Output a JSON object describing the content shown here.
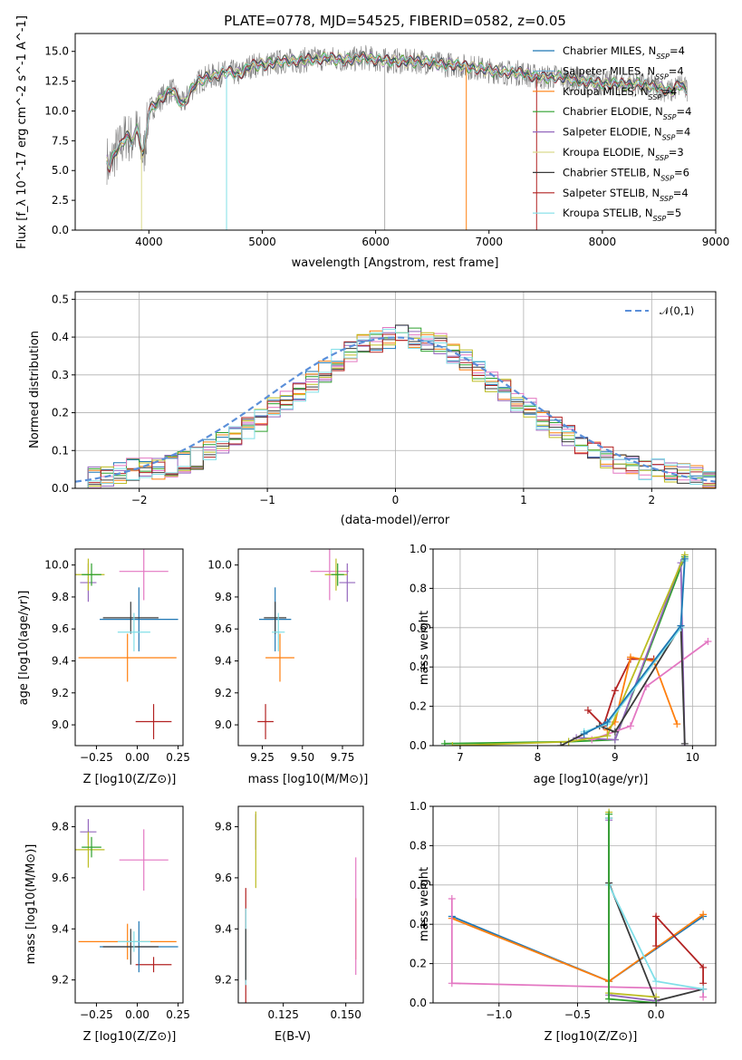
{
  "chart_data": [
    {
      "id": "spectrum",
      "type": "line",
      "title": "PLATE=0778, MJD=54525, FIBERID=0582, z=0.05",
      "xlabel": "wavelength [Angstrom, rest frame]",
      "ylabel": "Flux [f_λ 10^-17 erg cm^-2 s^-1 A^-1]",
      "xlim": [
        3350,
        9000
      ],
      "ylim": [
        0,
        16.5
      ],
      "xticks": [
        4000,
        5000,
        6000,
        7000,
        8000,
        9000
      ],
      "yticks": [
        0.0,
        2.5,
        5.0,
        7.5,
        10.0,
        12.5,
        15.0
      ],
      "grid": false,
      "legend_position": "right",
      "observed_flux": {
        "x": [
          3630,
          3650,
          3700,
          3750,
          3800,
          3850,
          3900,
          3950,
          4000,
          4100,
          4200,
          4300,
          4400,
          4500,
          4600,
          4700,
          4800,
          4900,
          5000,
          5100,
          5200,
          5300,
          5400,
          5500,
          5600,
          5700,
          5800,
          5900,
          6000,
          6100,
          6200,
          6300,
          6400,
          6500,
          6600,
          6700,
          6800,
          6900,
          7000,
          7100,
          7200,
          7300,
          7400,
          7500,
          7600,
          7700,
          7800,
          7900,
          8000,
          8100,
          8200,
          8300,
          8400,
          8500,
          8600,
          8700,
          8750
        ],
        "y": [
          6.0,
          5.2,
          6.5,
          7.0,
          8.0,
          7.5,
          8.5,
          6.0,
          10.0,
          11.0,
          11.8,
          10.5,
          12.2,
          12.8,
          13.0,
          13.3,
          13.1,
          13.8,
          13.9,
          14.0,
          14.2,
          14.2,
          14.3,
          14.4,
          14.4,
          14.3,
          14.3,
          14.5,
          14.3,
          14.2,
          14.2,
          14.1,
          14.2,
          14.0,
          13.9,
          13.9,
          13.7,
          13.6,
          13.4,
          13.3,
          13.2,
          13.2,
          12.9,
          12.8,
          12.9,
          12.7,
          12.5,
          12.4,
          12.3,
          12.3,
          12.2,
          12.3,
          12.1,
          12.0,
          11.6,
          12.3,
          11.5
        ]
      },
      "series": [
        {
          "name": "Chabrier MILES, N_SSP=4",
          "color": "#1f77b4"
        },
        {
          "name": "Salpeter MILES, N_SSP=4",
          "color": "#7fb3d5"
        },
        {
          "name": "Kroupa MILES, N_SSP=4",
          "color": "#ff7f0e"
        },
        {
          "name": "Chabrier ELODIE, N_SSP=4",
          "color": "#2ca02c"
        },
        {
          "name": "Salpeter ELODIE, N_SSP=4",
          "color": "#9467bd"
        },
        {
          "name": "Kroupa ELODIE, N_SSP=3",
          "color": "#dbdb8d"
        },
        {
          "name": "Chabrier STELIB, N_SSP=6",
          "color": "#3a3a3a"
        },
        {
          "name": "Salpeter STELIB, N_SSP=4",
          "color": "#b22222"
        },
        {
          "name": "Kroupa STELIB, N_SSP=5",
          "color": "#80dfe8"
        }
      ]
    },
    {
      "id": "residuals",
      "type": "line",
      "xlabel": "(data-model)/error",
      "ylabel": "Normed distribution",
      "xlim": [
        -2.5,
        2.5
      ],
      "ylim": [
        0,
        0.52
      ],
      "xticks": [
        -2,
        -1,
        0,
        1,
        2
      ],
      "yticks": [
        0.0,
        0.1,
        0.2,
        0.3,
        0.4,
        0.5
      ],
      "grid": true,
      "legend_position": "top-right",
      "reference_curve": "𝒩(0,1)",
      "histogram_bins": [
        -2.5,
        -2.4,
        -2.3,
        -2.2,
        -2.1,
        -2.0,
        -1.9,
        -1.8,
        -1.7,
        -1.6,
        -1.5,
        -1.4,
        -1.3,
        -1.2,
        -1.1,
        -1.0,
        -0.9,
        -0.8,
        -0.7,
        -0.6,
        -0.5,
        -0.4,
        -0.3,
        -0.2,
        -0.1,
        0.0,
        0.1,
        0.2,
        0.3,
        0.4,
        0.5,
        0.6,
        0.7,
        0.8,
        0.9,
        1.0,
        1.1,
        1.2,
        1.3,
        1.4,
        1.5,
        1.6,
        1.7,
        1.8,
        1.9,
        2.0,
        2.1,
        2.2,
        2.3,
        2.4,
        2.5
      ],
      "histogram_density": [
        0.02,
        0.03,
        0.03,
        0.04,
        0.05,
        0.05,
        0.05,
        0.06,
        0.07,
        0.08,
        0.1,
        0.12,
        0.14,
        0.16,
        0.18,
        0.21,
        0.23,
        0.26,
        0.28,
        0.31,
        0.34,
        0.36,
        0.38,
        0.39,
        0.4,
        0.41,
        0.4,
        0.39,
        0.38,
        0.36,
        0.34,
        0.31,
        0.28,
        0.26,
        0.23,
        0.21,
        0.18,
        0.16,
        0.14,
        0.12,
        0.1,
        0.08,
        0.07,
        0.06,
        0.05,
        0.05,
        0.04,
        0.04,
        0.03,
        0.02
      ],
      "histogram_colors": [
        "#1f77b4",
        "#ff7f0e",
        "#2ca02c",
        "#9467bd",
        "#e377c2",
        "#bcbd22",
        "#3a3a3a",
        "#b22222",
        "#80dfe8"
      ]
    },
    {
      "id": "age_vs_Z",
      "type": "scatter",
      "xlabel": "Z [log10(Z/Z⊙)]",
      "ylabel": "age [log10(age/yr)]",
      "xlim": [
        -0.38,
        0.28
      ],
      "ylim": [
        8.87,
        10.1
      ],
      "xticks": [
        -0.25,
        0.0,
        0.25
      ],
      "xtick_labels": [
        "−0.25",
        "0.00",
        "0.25"
      ],
      "yticks": [
        9.0,
        9.2,
        9.4,
        9.6,
        9.8,
        10.0
      ],
      "grid": false,
      "points": [
        {
          "x": 0.1,
          "y": 9.02,
          "xerr": 0.11,
          "yerr": 0.11,
          "color": "#b22222"
        },
        {
          "x": -0.06,
          "y": 9.42,
          "xerr": 0.3,
          "yerr": 0.15,
          "color": "#ff7f0e"
        },
        {
          "x": 0.01,
          "y": 9.66,
          "xerr": 0.24,
          "yerr": 0.2,
          "color": "#1f77b4"
        },
        {
          "x": -0.04,
          "y": 9.67,
          "xerr": 0.17,
          "yerr": 0.1,
          "color": "#3a3a3a"
        },
        {
          "x": -0.02,
          "y": 9.58,
          "xerr": 0.1,
          "yerr": 0.12,
          "color": "#80dfe8"
        },
        {
          "x": 0.04,
          "y": 9.96,
          "xerr": 0.15,
          "yerr": 0.18,
          "color": "#e377c2"
        },
        {
          "x": -0.3,
          "y": 9.89,
          "xerr": 0.05,
          "yerr": 0.12,
          "color": "#9467bd"
        },
        {
          "x": -0.3,
          "y": 9.94,
          "xerr": 0.1,
          "yerr": 0.1,
          "color": "#bcbd22"
        },
        {
          "x": -0.28,
          "y": 9.94,
          "xerr": 0.06,
          "yerr": 0.07,
          "color": "#2ca02c"
        }
      ]
    },
    {
      "id": "age_vs_mass",
      "type": "scatter",
      "xlabel": "mass [log10(M/M⊙)]",
      "xlim": [
        9.1,
        9.88
      ],
      "ylim": [
        8.87,
        10.1
      ],
      "xticks": [
        9.25,
        9.5,
        9.75
      ],
      "xtick_labels": [
        "9.25",
        "9.50",
        "9.75"
      ],
      "yticks": [
        9.0,
        9.2,
        9.4,
        9.6,
        9.8,
        10.0
      ],
      "grid": false,
      "points": [
        {
          "x": 9.27,
          "y": 9.02,
          "xerr": 0.05,
          "yerr": 0.11,
          "color": "#b22222"
        },
        {
          "x": 9.36,
          "y": 9.42,
          "xerr": 0.09,
          "yerr": 0.15,
          "color": "#ff7f0e"
        },
        {
          "x": 9.33,
          "y": 9.66,
          "xerr": 0.1,
          "yerr": 0.2,
          "color": "#1f77b4"
        },
        {
          "x": 9.33,
          "y": 9.67,
          "xerr": 0.07,
          "yerr": 0.1,
          "color": "#3a3a3a"
        },
        {
          "x": 9.35,
          "y": 9.58,
          "xerr": 0.04,
          "yerr": 0.12,
          "color": "#80dfe8"
        },
        {
          "x": 9.67,
          "y": 9.96,
          "xerr": 0.12,
          "yerr": 0.18,
          "color": "#e377c2"
        },
        {
          "x": 9.78,
          "y": 9.89,
          "xerr": 0.05,
          "yerr": 0.12,
          "color": "#9467bd"
        },
        {
          "x": 9.71,
          "y": 9.94,
          "xerr": 0.07,
          "yerr": 0.1,
          "color": "#bcbd22"
        },
        {
          "x": 9.72,
          "y": 9.94,
          "xerr": 0.04,
          "yerr": 0.07,
          "color": "#2ca02c"
        }
      ]
    },
    {
      "id": "weight_vs_age",
      "type": "line",
      "xlabel": "age [log10(age/yr)]",
      "ylabel": "mass weight",
      "xlim": [
        6.65,
        10.3
      ],
      "ylim": [
        0,
        1.0
      ],
      "xticks": [
        7,
        8,
        9,
        10
      ],
      "yticks": [
        0.0,
        0.2,
        0.4,
        0.6,
        0.8,
        1.0
      ],
      "grid": true,
      "series": [
        {
          "color": "#b22222",
          "x": [
            8.65,
            8.85,
            9.0,
            9.2,
            9.5
          ],
          "y": [
            0.18,
            0.1,
            0.28,
            0.44,
            0.44
          ]
        },
        {
          "color": "#ff7f0e",
          "x": [
            8.9,
            9.0,
            9.2,
            9.5,
            9.8
          ],
          "y": [
            0.08,
            0.12,
            0.45,
            0.43,
            0.11
          ]
        },
        {
          "color": "#2ca02c",
          "x": [
            6.8,
            8.4,
            9.0,
            9.9
          ],
          "y": [
            0.01,
            0.02,
            0.03,
            0.96
          ]
        },
        {
          "color": "#9467bd",
          "x": [
            8.5,
            9.0,
            9.85,
            9.9
          ],
          "y": [
            0.04,
            0.03,
            0.93,
            0.0
          ]
        },
        {
          "color": "#e377c2",
          "x": [
            8.7,
            9.2,
            9.4,
            10.2
          ],
          "y": [
            0.03,
            0.1,
            0.3,
            0.53
          ]
        },
        {
          "color": "#bcbd22",
          "x": [
            6.9,
            8.4,
            8.9,
            9.9
          ],
          "y": [
            0.0,
            0.02,
            0.05,
            0.97
          ]
        },
        {
          "color": "#3a3a3a",
          "x": [
            8.3,
            8.8,
            9.0,
            9.85,
            9.9
          ],
          "y": [
            0.0,
            0.1,
            0.07,
            0.61,
            0.01
          ]
        },
        {
          "color": "#80dfe8",
          "x": [
            8.6,
            8.9,
            9.85,
            9.9
          ],
          "y": [
            0.07,
            0.11,
            0.6,
            0.94
          ]
        },
        {
          "color": "#1f77b4",
          "x": [
            8.6,
            8.9,
            9.85,
            9.9
          ],
          "y": [
            0.06,
            0.12,
            0.61,
            0.95
          ]
        }
      ]
    },
    {
      "id": "mass_vs_Z",
      "type": "scatter",
      "xlabel": "Z [log10(Z/Z⊙)]",
      "ylabel": "mass [log10(M/M⊙)]",
      "xlim": [
        -0.38,
        0.28
      ],
      "ylim": [
        9.11,
        9.88
      ],
      "xticks": [
        -0.25,
        0.0,
        0.25
      ],
      "xtick_labels": [
        "−0.25",
        "0.00",
        "0.25"
      ],
      "yticks": [
        9.2,
        9.4,
        9.6,
        9.8
      ],
      "grid": false,
      "points": [
        {
          "x": 0.1,
          "y": 9.26,
          "xerr": 0.11,
          "yerr": 0.03,
          "color": "#b22222"
        },
        {
          "x": -0.06,
          "y": 9.35,
          "xerr": 0.3,
          "yerr": 0.07,
          "color": "#ff7f0e"
        },
        {
          "x": 0.01,
          "y": 9.33,
          "xerr": 0.24,
          "yerr": 0.1,
          "color": "#1f77b4"
        },
        {
          "x": -0.04,
          "y": 9.33,
          "xerr": 0.17,
          "yerr": 0.07,
          "color": "#3a3a3a"
        },
        {
          "x": -0.02,
          "y": 9.35,
          "xerr": 0.1,
          "yerr": 0.04,
          "color": "#80dfe8"
        },
        {
          "x": 0.04,
          "y": 9.67,
          "xerr": 0.15,
          "yerr": 0.12,
          "color": "#e377c2"
        },
        {
          "x": -0.3,
          "y": 9.78,
          "xerr": 0.05,
          "yerr": 0.05,
          "color": "#9467bd"
        },
        {
          "x": -0.3,
          "y": 9.71,
          "xerr": 0.1,
          "yerr": 0.07,
          "color": "#bcbd22"
        },
        {
          "x": -0.28,
          "y": 9.72,
          "xerr": 0.06,
          "yerr": 0.04,
          "color": "#2ca02c"
        }
      ]
    },
    {
      "id": "mass_vs_EBV",
      "type": "scatter",
      "xlabel": "E(B-V)",
      "xlim": [
        0.107,
        0.157
      ],
      "ylim": [
        9.11,
        9.88
      ],
      "xticks": [
        0.125,
        0.15
      ],
      "xtick_labels": [
        "0.125",
        "0.150"
      ],
      "yticks": [
        9.2,
        9.4,
        9.6,
        9.8
      ],
      "grid": false,
      "points": [
        {
          "x": 0.11,
          "y": 9.26,
          "yerr": 0.3,
          "color": "#b22222"
        },
        {
          "x": 0.11,
          "y": 9.33,
          "yerr": 0.15,
          "color": "#80dfe8"
        },
        {
          "x": 0.11,
          "y": 9.3,
          "yerr": 0.1,
          "color": "#3a3a3a"
        },
        {
          "x": 0.114,
          "y": 9.78,
          "yerr": 0.07,
          "color": "#9467bd"
        },
        {
          "x": 0.114,
          "y": 9.71,
          "yerr": 0.15,
          "color": "#bcbd22"
        },
        {
          "x": 0.154,
          "y": 9.4,
          "yerr": 0.12,
          "color": "#ff7f0e"
        },
        {
          "x": 0.154,
          "y": 9.45,
          "yerr": 0.23,
          "color": "#e377c2"
        }
      ]
    },
    {
      "id": "weight_vs_Z",
      "type": "line",
      "xlabel": "Z [log10(Z/Z⊙)]",
      "ylabel": "mass weight",
      "xlim": [
        -1.42,
        0.38
      ],
      "ylim": [
        0,
        1.0
      ],
      "xticks": [
        -1.0,
        -0.5,
        0.0
      ],
      "xtick_labels": [
        "−1.0",
        "−0.5",
        "0.0"
      ],
      "yticks": [
        0.0,
        0.2,
        0.4,
        0.6,
        0.8,
        1.0
      ],
      "grid": true,
      "series": [
        {
          "color": "#1f77b4",
          "x": [
            -1.3,
            -0.3,
            0.3
          ],
          "y": [
            0.44,
            0.11,
            0.44
          ]
        },
        {
          "color": "#ff7f0e",
          "x": [
            -1.3,
            -0.3,
            0.3
          ],
          "y": [
            0.43,
            0.11,
            0.45
          ]
        },
        {
          "color": "#e377c2",
          "x": [
            -1.3,
            -1.3,
            0.3,
            0.3
          ],
          "y": [
            0.53,
            0.1,
            0.07,
            0.03
          ]
        },
        {
          "color": "#b22222",
          "x": [
            0.0,
            0.0,
            0.3,
            0.3
          ],
          "y": [
            0.29,
            0.44,
            0.18,
            0.1
          ]
        },
        {
          "color": "#3a3a3a",
          "x": [
            -0.3,
            -0.3,
            0.0,
            0.3
          ],
          "y": [
            0.94,
            0.61,
            0.01,
            0.07
          ]
        },
        {
          "color": "#80dfe8",
          "x": [
            -0.3,
            -0.3,
            0.0,
            0.3
          ],
          "y": [
            0.94,
            0.6,
            0.11,
            0.07
          ]
        },
        {
          "color": "#bcbd22",
          "x": [
            -0.3,
            -0.3,
            0.0
          ],
          "y": [
            0.97,
            0.05,
            0.03
          ]
        },
        {
          "color": "#9467bd",
          "x": [
            -0.3,
            -0.3,
            0.0
          ],
          "y": [
            0.93,
            0.04,
            0.01
          ]
        },
        {
          "color": "#2ca02c",
          "x": [
            -0.3,
            -0.3,
            0.0
          ],
          "y": [
            0.96,
            0.02,
            0.0
          ]
        }
      ]
    }
  ]
}
